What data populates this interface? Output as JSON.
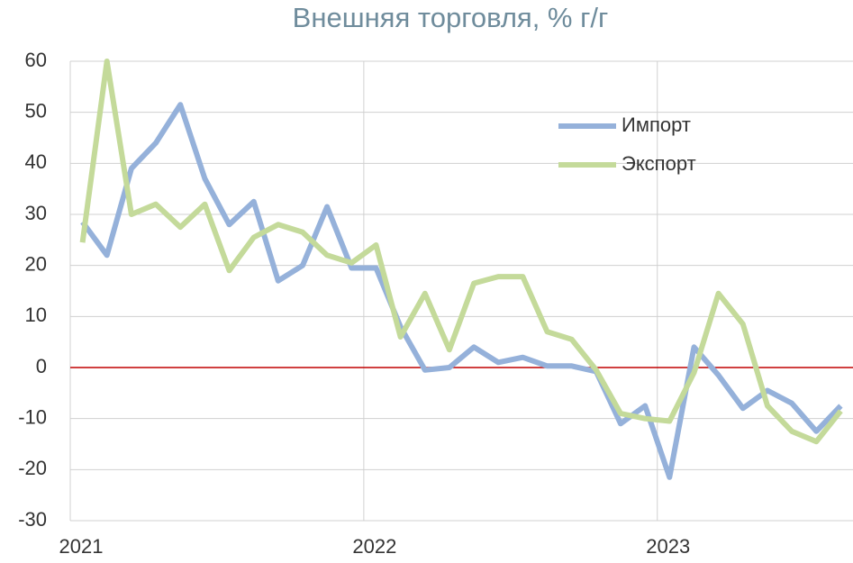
{
  "chart_data": {
    "type": "line",
    "title": "Внешняя торговля, % г/г",
    "categories": [
      "2021",
      null,
      null,
      null,
      null,
      null,
      null,
      null,
      null,
      null,
      null,
      null,
      "2022",
      null,
      null,
      null,
      null,
      null,
      null,
      null,
      null,
      null,
      null,
      null,
      "2023",
      null,
      null,
      null,
      null,
      null,
      null,
      null
    ],
    "series": [
      {
        "name": "Импорт",
        "color": "#95b1da",
        "values": [
          28.5,
          22,
          39,
          44,
          51.5,
          37,
          28,
          32.5,
          17,
          20,
          31.5,
          19.5,
          19.5,
          8,
          -0.5,
          0,
          4,
          1,
          2,
          0.3,
          0.3,
          -0.8,
          -11,
          -7.5,
          -21.5,
          4,
          -1.5,
          -8,
          -4.5,
          -7,
          -12.5,
          -7.5
        ]
      },
      {
        "name": "Экспорт",
        "color": "#c4da9a",
        "values": [
          24.5,
          60,
          30,
          32,
          27.5,
          32,
          19,
          25.5,
          28,
          26.5,
          22,
          20.5,
          24,
          6,
          14.5,
          3.5,
          16.5,
          17.8,
          17.8,
          7,
          5.5,
          -0.5,
          -9,
          -10,
          -10.5,
          -1,
          14.5,
          8.5,
          -7.5,
          -12.5,
          -14.5,
          -8.5
        ]
      }
    ],
    "ylim": [
      -30,
      60
    ],
    "yticks": [
      -30,
      -20,
      -10,
      0,
      10,
      20,
      30,
      40,
      50,
      60
    ],
    "grid": true,
    "zero_line_color": "#c00000",
    "legend": "upper right"
  }
}
